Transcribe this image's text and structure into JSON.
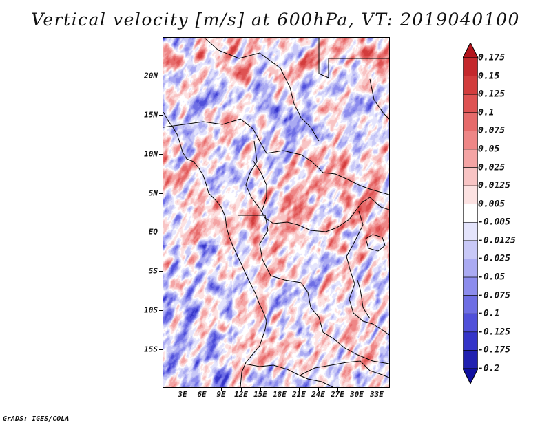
{
  "title": "Vertical velocity [m/s] at 600hPa, VT: 2019040100",
  "credit": "GrADS: IGES/COLA",
  "map": {
    "variable": "Vertical velocity",
    "units": "m/s",
    "level": "600hPa",
    "valid_time": "2019040100",
    "lat_labels": [
      "20N",
      "15N",
      "10N",
      "5N",
      "EQ",
      "5S",
      "10S",
      "15S"
    ],
    "lon_labels": [
      "3E",
      "6E",
      "9E",
      "12E",
      "15E",
      "18E",
      "21E",
      "24E",
      "27E",
      "30E",
      "33E"
    ]
  },
  "colorbar": {
    "labels": [
      "0.175",
      "0.15",
      "0.125",
      "0.1",
      "0.075",
      "0.05",
      "0.025",
      "0.0125",
      "0.005",
      "-0.005",
      "-0.0125",
      "-0.025",
      "-0.05",
      "-0.075",
      "-0.1",
      "-0.125",
      "-0.175",
      "-0.2"
    ],
    "colors": [
      "#b3141b",
      "#c4282c",
      "#d23c3c",
      "#de5252",
      "#e66a6a",
      "#ee8686",
      "#f4a4a4",
      "#f8c4c4",
      "#fce2e2",
      "#ffffff",
      "#e4e4fc",
      "#c8c8f7",
      "#aaaaf2",
      "#8c8ced",
      "#6e6ee4",
      "#5050da",
      "#3434c8",
      "#2020b0",
      "#1010a0"
    ]
  }
}
